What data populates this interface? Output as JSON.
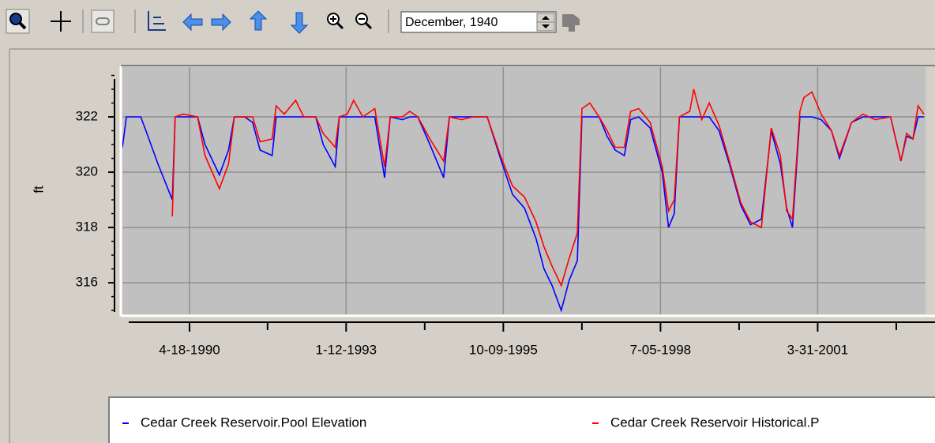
{
  "toolbar": {
    "date": "December, 1940"
  },
  "chart_data": {
    "type": "line",
    "y_label": "ft",
    "x": [
      1989.13,
      1989.2,
      1989.45,
      1989.54,
      1989.75,
      1990.0,
      1990.05,
      1990.19,
      1990.44,
      1990.57,
      1990.82,
      1990.98,
      1991.08,
      1991.26,
      1991.4,
      1991.53,
      1991.74,
      1991.81,
      1991.95,
      1992.15,
      1992.29,
      1992.5,
      1992.63,
      1992.84,
      1992.91,
      1993.05,
      1993.16,
      1993.32,
      1993.53,
      1993.7,
      1993.8,
      1994.01,
      1994.14,
      1994.28,
      1994.49,
      1994.73,
      1994.83,
      1995.04,
      1995.24,
      1995.49,
      1995.72,
      1995.93,
      1996.14,
      1996.34,
      1996.48,
      1996.62,
      1996.78,
      1996.92,
      1997.06,
      1997.14,
      1997.28,
      1997.44,
      1997.58,
      1997.72,
      1997.88,
      1997.99,
      1998.13,
      1998.33,
      1998.54,
      1998.65,
      1998.75,
      1998.84,
      1999.02,
      1999.09,
      1999.23,
      1999.36,
      1999.53,
      1999.71,
      1999.91,
      2000.08,
      2000.27,
      2000.44,
      2000.6,
      2000.71,
      2000.81,
      2000.94,
      2001.01,
      2001.15,
      2001.31,
      2001.49,
      2001.63,
      2001.84,
      2002.04,
      2002.25,
      2002.52,
      2002.7,
      2002.8,
      2002.91,
      2003.0,
      2003.1
    ],
    "series": [
      {
        "name": "Cedar Creek Reservoir.Pool Elevation",
        "color": "#0000ff",
        "values": [
          320.9,
          322,
          322,
          321.5,
          320.3,
          319.0,
          322,
          322,
          322,
          321,
          319.9,
          320.8,
          322,
          322,
          321.8,
          320.8,
          320.6,
          322,
          322,
          322,
          322,
          322,
          321,
          320.2,
          322,
          322,
          322,
          322,
          322,
          319.8,
          322,
          321.9,
          322,
          322,
          321,
          319.8,
          322,
          322,
          322,
          322,
          320.5,
          319.2,
          318.7,
          317.6,
          316.5,
          315.9,
          315.0,
          316.1,
          316.8,
          322,
          322,
          322,
          321.3,
          320.8,
          320.6,
          321.9,
          322,
          321.6,
          320,
          318.0,
          318.5,
          322,
          322,
          322,
          322,
          322,
          321.5,
          320.3,
          318.8,
          318.1,
          318.3,
          321.5,
          320.3,
          318.7,
          318.0,
          322,
          322,
          322,
          321.9,
          321.5,
          320.5,
          321.8,
          322,
          322,
          322,
          320.4,
          321.3,
          321.2,
          322,
          322
        ]
      },
      {
        "name": "Cedar Creek Reservoir Historical.P",
        "color": "#ff0000",
        "values": [
          null,
          null,
          null,
          null,
          null,
          318.4,
          322,
          322.1,
          322,
          320.6,
          319.4,
          320.3,
          322,
          322,
          322,
          321.1,
          321.2,
          322.4,
          322.1,
          322.6,
          322,
          322,
          321.4,
          320.9,
          322,
          322.1,
          322.6,
          322,
          322.3,
          320.2,
          322,
          322,
          322.2,
          322,
          321.2,
          320.4,
          322,
          321.9,
          322,
          322,
          320.6,
          319.5,
          319.1,
          318.2,
          317.3,
          316.6,
          315.9,
          316.9,
          317.8,
          322.3,
          322.5,
          322,
          321.5,
          320.9,
          320.9,
          322.2,
          322.3,
          321.8,
          320.2,
          318.6,
          319,
          322,
          322.2,
          323,
          321.9,
          322.5,
          321.7,
          320.4,
          318.9,
          318.2,
          318.0,
          321.6,
          320.6,
          318.6,
          318.3,
          322.2,
          322.7,
          322.9,
          322.1,
          321.5,
          320.6,
          321.8,
          322.1,
          321.9,
          322,
          320.4,
          321.4,
          321.2,
          322.4,
          322.1
        ]
      }
    ],
    "xlim": [
      1989.13,
      2003.13
    ],
    "xticks": [
      {
        "value": 1990.3,
        "label": "4-18-1990"
      },
      {
        "value": 1993.03,
        "label": "1-12-1993"
      },
      {
        "value": 1995.77,
        "label": "10-09-1995"
      },
      {
        "value": 1998.51,
        "label": "7-05-1998"
      },
      {
        "value": 2001.25,
        "label": "3-31-2001"
      }
    ],
    "xminorticks": [
      1991.66,
      1994.4,
      1997.14,
      1999.88,
      2002.62
    ],
    "ylim": [
      314.86,
      323.8
    ],
    "yticks": [
      316,
      318,
      320,
      322
    ],
    "yminorticks": [
      315,
      315.5,
      316.5,
      317,
      317.5,
      318.5,
      319,
      319.5,
      320.5,
      321,
      321.5,
      322.5,
      323,
      323.5
    ],
    "grid": true
  }
}
